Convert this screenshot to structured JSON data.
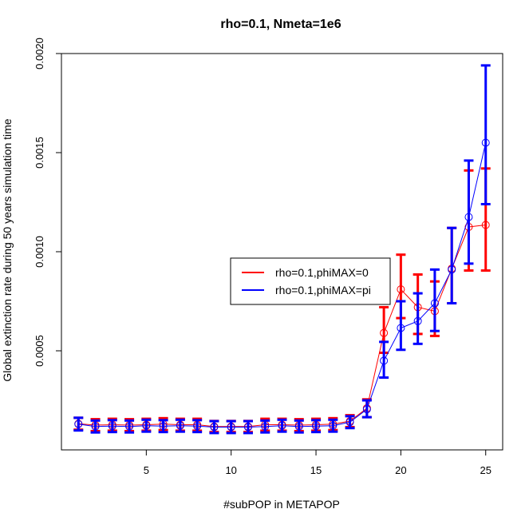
{
  "chart_data": {
    "type": "line",
    "title": "rho=0.1, Nmeta=1e6",
    "xlabel": "#subPOP in METAPOP",
    "ylabel": "Global extinction rate during 50 years simulation time",
    "xlim": [
      0,
      26
    ],
    "ylim": [
      0.0,
      0.002
    ],
    "x_ticks": [
      5,
      10,
      15,
      20,
      25
    ],
    "x_tick_labels": [
      "5",
      "10",
      "15",
      "20",
      "25"
    ],
    "y_ticks": [
      0.0005,
      0.001,
      0.0015,
      0.002
    ],
    "y_tick_labels": [
      "0.0005",
      "0.0010",
      "0.0015",
      "0.0020"
    ],
    "x": [
      1,
      2,
      3,
      4,
      5,
      6,
      7,
      8,
      9,
      10,
      11,
      12,
      13,
      14,
      15,
      16,
      17,
      18,
      19,
      20,
      21,
      22,
      23,
      24,
      25
    ],
    "legend_position": "center-right",
    "series": [
      {
        "name": "rho=0.1,phiMAX=0",
        "color": "#ff0000",
        "values": [
          0.000132,
          0.000125,
          0.000127,
          0.000125,
          0.000127,
          0.00013,
          0.000127,
          0.000127,
          0.000118,
          0.000118,
          0.000118,
          0.000127,
          0.000127,
          0.000125,
          0.000127,
          0.00013,
          0.000145,
          0.00021,
          0.00059,
          0.00081,
          0.00072,
          0.0007,
          0.000915,
          0.001125,
          0.001135
        ],
        "lower": [
          0.000102,
          9.5e-05,
          9.7e-05,
          9.5e-05,
          9.7e-05,
          0.0001,
          9.7e-05,
          9.7e-05,
          9e-05,
          9e-05,
          9e-05,
          9.7e-05,
          9.7e-05,
          9.5e-05,
          9.7e-05,
          0.0001,
          0.000115,
          0.000165,
          0.00049,
          0.000665,
          0.000585,
          0.000575,
          0.00074,
          0.000905,
          0.000905
        ],
        "upper": [
          0.000162,
          0.000155,
          0.000157,
          0.000155,
          0.000157,
          0.00016,
          0.000157,
          0.000157,
          0.000146,
          0.000146,
          0.000146,
          0.000157,
          0.000157,
          0.000155,
          0.000157,
          0.00016,
          0.000175,
          0.000255,
          0.00072,
          0.000985,
          0.000885,
          0.00085,
          0.00112,
          0.00141,
          0.00142
        ]
      },
      {
        "name": "rho=0.1,phiMAX=pi",
        "color": "#0000ff",
        "values": [
          0.00013,
          0.000118,
          0.00012,
          0.000118,
          0.000122,
          0.00012,
          0.000122,
          0.00012,
          0.000115,
          0.000115,
          0.000115,
          0.000118,
          0.000122,
          0.000118,
          0.00012,
          0.000122,
          0.00014,
          0.000205,
          0.00045,
          0.000615,
          0.00065,
          0.00074,
          0.00091,
          0.001175,
          0.00155
        ],
        "lower": [
          9.8e-05,
          8.8e-05,
          9e-05,
          8.8e-05,
          9.2e-05,
          9e-05,
          9.2e-05,
          9e-05,
          8.5e-05,
          8.5e-05,
          8.5e-05,
          8.8e-05,
          9.2e-05,
          8.8e-05,
          9e-05,
          9.2e-05,
          0.00011,
          0.000165,
          0.000365,
          0.000505,
          0.000535,
          0.0006,
          0.00074,
          0.00094,
          0.00124
        ],
        "upper": [
          0.000162,
          0.000148,
          0.00015,
          0.000148,
          0.000152,
          0.00015,
          0.000152,
          0.00015,
          0.000145,
          0.000145,
          0.000145,
          0.000148,
          0.000152,
          0.000148,
          0.00015,
          0.000152,
          0.00017,
          0.00025,
          0.000545,
          0.00075,
          0.00079,
          0.00091,
          0.00112,
          0.00146,
          0.00194
        ]
      }
    ]
  }
}
